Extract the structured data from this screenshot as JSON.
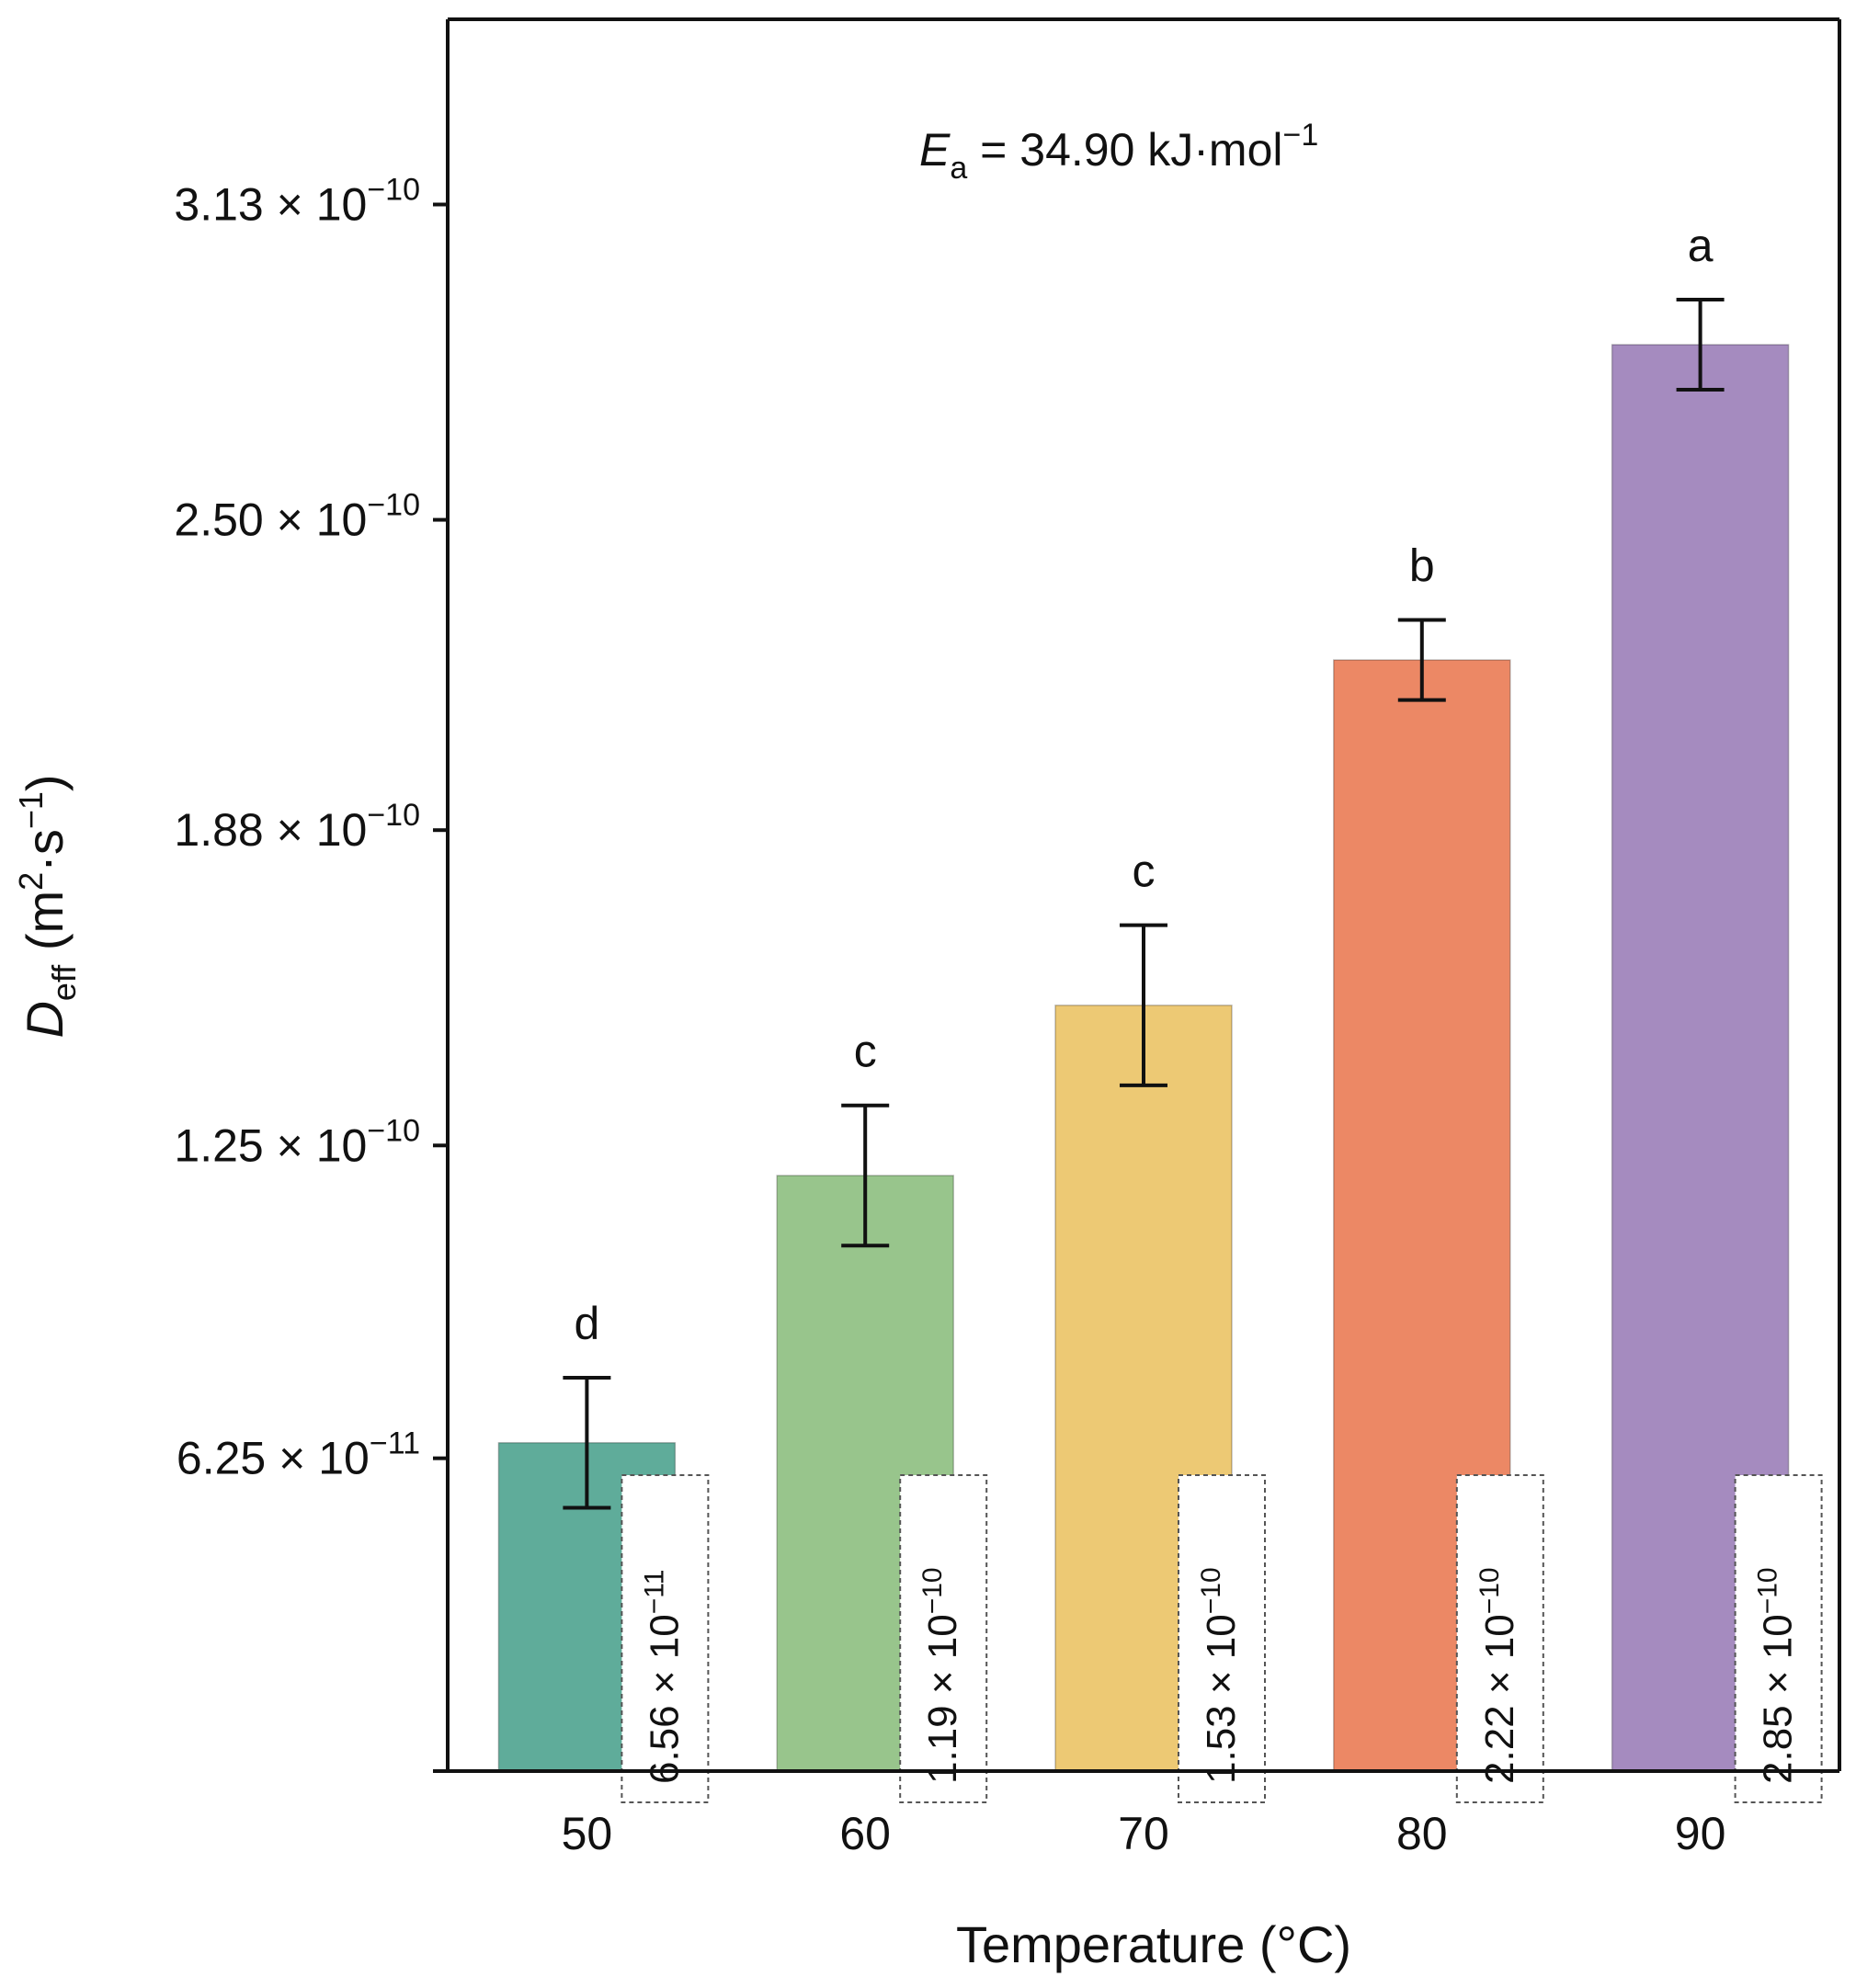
{
  "chart_data": {
    "type": "bar",
    "title": "",
    "xlabel": "Temperature (°C)",
    "ylabel": {
      "symbol": "D",
      "subscript": "eff",
      "unit_open": " (m",
      "unit_sup1": "2",
      "unit_mid": "·s",
      "unit_sup2": "−1",
      "unit_close": ")"
    },
    "categories": [
      "50",
      "60",
      "70",
      "80",
      "90"
    ],
    "values": [
      6.56e-11,
      1.19e-10,
      1.53e-10,
      2.22e-10,
      2.85e-10
    ],
    "errors": [
      1.3e-11,
      1.4e-11,
      1.6e-11,
      8e-12,
      9e-12
    ],
    "colors": [
      "#5fac9a",
      "#98c58c",
      "#edc974",
      "#ec8865",
      "#a58bbf"
    ],
    "significance": [
      "d",
      "c",
      "c",
      "b",
      "a"
    ],
    "value_labels": [
      {
        "mantissa": "6.56 × 10",
        "exponent": "−11"
      },
      {
        "mantissa": "1.19 × 10",
        "exponent": "−10"
      },
      {
        "mantissa": "1.53 × 10",
        "exponent": "−10"
      },
      {
        "mantissa": "2.22 × 10",
        "exponent": "−10"
      },
      {
        "mantissa": "2.85 × 10",
        "exponent": "−10"
      }
    ],
    "y_ticks": [
      {
        "value": 6.25e-11,
        "mantissa": "6.25 × 10",
        "exponent": "−11"
      },
      {
        "value": 1.25e-10,
        "mantissa": "1.25 × 10",
        "exponent": "−10"
      },
      {
        "value": 1.88e-10,
        "mantissa": "1.88 × 10",
        "exponent": "−10"
      },
      {
        "value": 2.5e-10,
        "mantissa": "2.50 × 10",
        "exponent": "−10"
      },
      {
        "value": 3.13e-10,
        "mantissa": "3.13 × 10",
        "exponent": "−10"
      }
    ],
    "ylim": [
      0,
      3.5e-10
    ],
    "annotation": {
      "symbol": "E",
      "subscript": "a",
      "text": " = 34.90 kJ·mol",
      "superscript": "−1"
    },
    "grid": false,
    "legend": "none"
  }
}
